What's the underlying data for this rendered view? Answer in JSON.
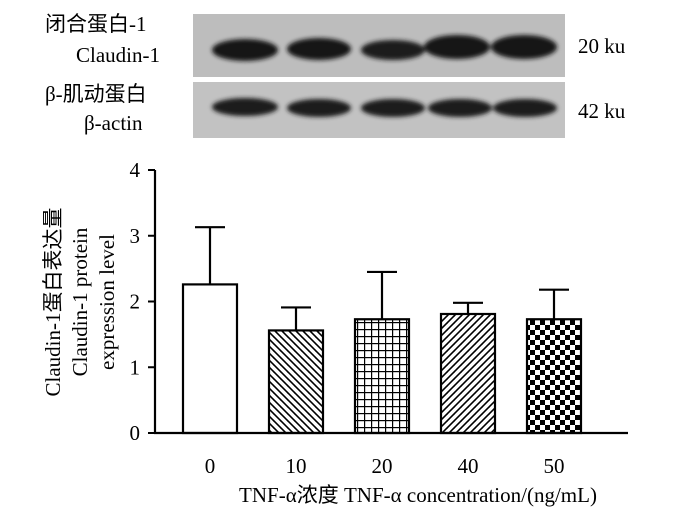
{
  "blots": [
    {
      "label_cn": "闭合蛋白-1",
      "label_en": "Claudin-1",
      "size": "20 ku"
    },
    {
      "label_cn": "β-肌动蛋白",
      "label_en": "β-actin",
      "size": "42 ku"
    }
  ],
  "chart_data": {
    "type": "bar",
    "categories": [
      "0",
      "10",
      "20",
      "40",
      "50"
    ],
    "values": [
      2.26,
      1.56,
      1.73,
      1.81,
      1.73
    ],
    "errors": [
      0.87,
      0.35,
      0.72,
      0.17,
      0.45
    ],
    "patterns": [
      "blank",
      "diag-back",
      "grid",
      "diag-fwd",
      "checker"
    ],
    "ylim": [
      0,
      4
    ],
    "yticks": [
      0,
      1,
      2,
      3,
      4
    ],
    "ylabel": [
      "Claudin-1蛋白表达量",
      "Claudin-1 protein",
      "expression level"
    ],
    "xlabel": "TNF-α浓度 TNF-α concentration/(ng/mL)"
  }
}
